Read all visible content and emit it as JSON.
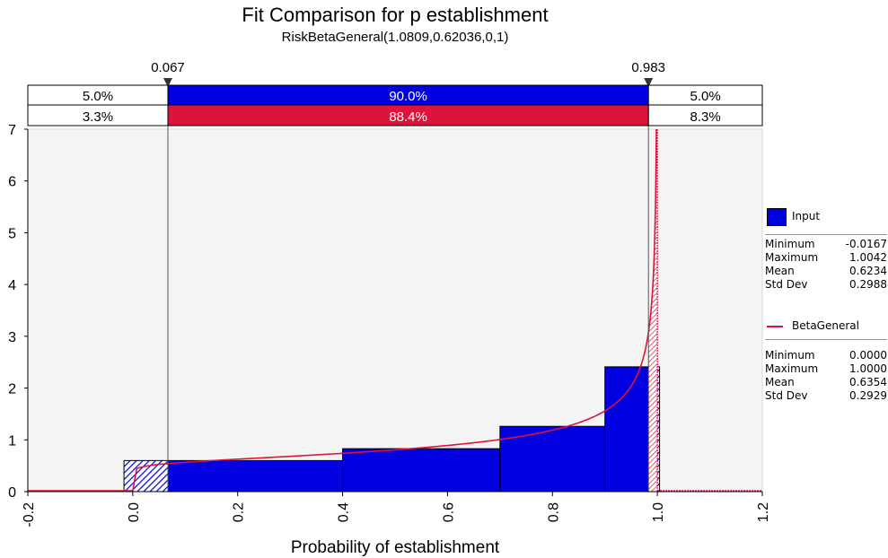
{
  "title": "Fit Comparison for p establishment",
  "subtitle": "RiskBetaGeneral(1.0809,0.62036,0,1)",
  "chart_data": {
    "type": "histogram-with-fitted-curve",
    "xlabel": "Probability of establishment",
    "ylabel": "",
    "xlim": [
      -0.2,
      1.2
    ],
    "ylim": [
      0,
      7
    ],
    "x_ticks": [
      "-0.2",
      "0.0",
      "0.2",
      "0.4",
      "0.6",
      "0.8",
      "1.0",
      "1.2"
    ],
    "y_ticks": [
      "0",
      "1",
      "2",
      "3",
      "4",
      "5",
      "6",
      "7"
    ],
    "grid": false,
    "markers": {
      "left": {
        "value": 0.067,
        "label": "0.067"
      },
      "right": {
        "value": 0.983,
        "label": "0.983"
      }
    },
    "band_input": {
      "left": "5.0%",
      "middle": "90.0%",
      "right": "5.0%",
      "color": "#0000e0"
    },
    "band_fit": {
      "left": "3.3%",
      "middle": "88.4%",
      "right": "8.3%",
      "color": "#dc143c"
    },
    "histogram": {
      "name": "Input",
      "color": "#0000e0",
      "bins": [
        {
          "x0": -0.0167,
          "x1": 0.4,
          "y": 0.6
        },
        {
          "x0": 0.4,
          "x1": 0.7,
          "y": 0.83
        },
        {
          "x0": 0.7,
          "x1": 0.9,
          "y": 1.26
        },
        {
          "x0": 0.9,
          "x1": 1.0042,
          "y": 2.41
        }
      ]
    },
    "fitted_curve": {
      "name": "BetaGeneral",
      "color": "#dc143c",
      "alpha": 1.0809,
      "beta": 0.62036,
      "min": 0,
      "max": 1
    }
  },
  "legend": {
    "input": {
      "label": "Input",
      "stats": [
        {
          "k": "Minimum",
          "v": "-0.0167"
        },
        {
          "k": "Maximum",
          "v": "1.0042"
        },
        {
          "k": "Mean",
          "v": "0.6234"
        },
        {
          "k": "Std Dev",
          "v": "0.2988"
        }
      ]
    },
    "fit": {
      "label": "BetaGeneral",
      "stats": [
        {
          "k": "Minimum",
          "v": "0.0000"
        },
        {
          "k": "Maximum",
          "v": "1.0000"
        },
        {
          "k": "Mean",
          "v": "0.6354"
        },
        {
          "k": "Std Dev",
          "v": "0.2929"
        }
      ]
    }
  }
}
